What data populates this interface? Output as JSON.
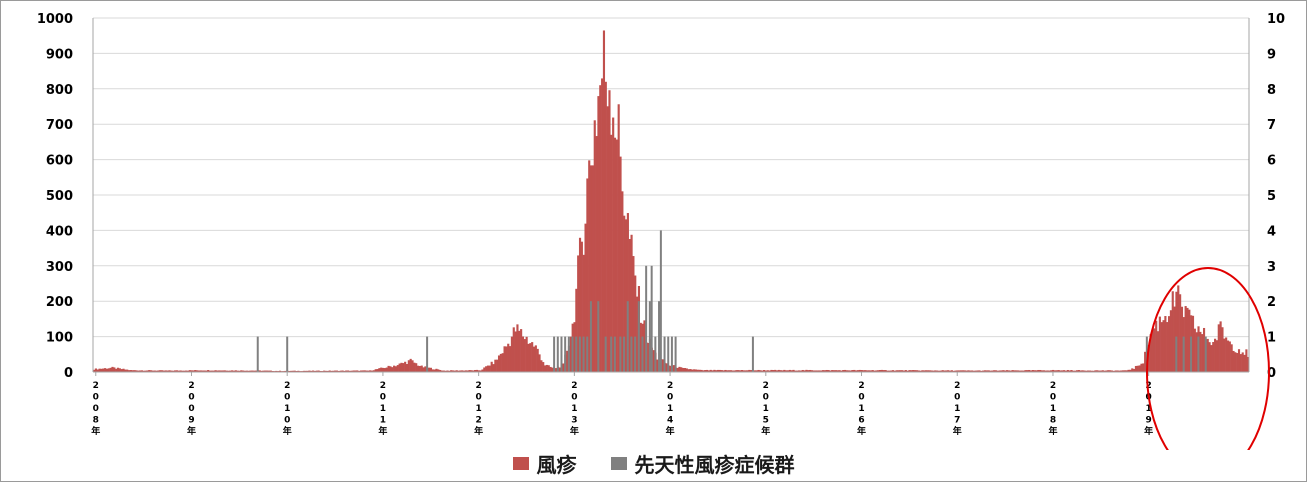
{
  "chart_data": {
    "type": "bar",
    "title": "",
    "xlabel": "",
    "ylabel": "",
    "ylim": [
      0,
      1000
    ],
    "y2lim": [
      0,
      10
    ],
    "yticks": [
      "0",
      "100",
      "200",
      "300",
      "400",
      "500",
      "600",
      "700",
      "800",
      "900",
      "1000"
    ],
    "y2ticks": [
      "0",
      "1",
      "2",
      "3",
      "4",
      "5",
      "6",
      "7",
      "8",
      "9",
      "10"
    ],
    "x_ticks": [
      "2008年",
      "2009年",
      "2010年",
      "2011年",
      "2012年",
      "2013年",
      "2014年",
      "2015年",
      "2016年",
      "2017年",
      "2018年",
      "2019年"
    ],
    "grid": true,
    "legend_position": "bottom",
    "colors": {
      "rubella": "#c0504d",
      "crs": "#808080",
      "annotation": "#e00000"
    },
    "annotation": {
      "type": "ellipse",
      "around_year": "2019年"
    },
    "series": [
      {
        "name": "風疹",
        "axis": "left",
        "x_unit": "week",
        "x_start": "2008年",
        "keypoints": [
          [
            0,
            8
          ],
          [
            10,
            12
          ],
          [
            20,
            5
          ],
          [
            40,
            4
          ],
          [
            60,
            5
          ],
          [
            90,
            4
          ],
          [
            100,
            3
          ],
          [
            150,
            4
          ],
          [
            165,
            20
          ],
          [
            172,
            32
          ],
          [
            178,
            15
          ],
          [
            190,
            4
          ],
          [
            210,
            5
          ],
          [
            218,
            30
          ],
          [
            225,
            80
          ],
          [
            229,
            120
          ],
          [
            232,
            110
          ],
          [
            240,
            70
          ],
          [
            245,
            20
          ],
          [
            250,
            10
          ],
          [
            255,
            20
          ],
          [
            260,
            130
          ],
          [
            264,
            320
          ],
          [
            268,
            520
          ],
          [
            272,
            700
          ],
          [
            276,
            850
          ],
          [
            280,
            840
          ],
          [
            284,
            700
          ],
          [
            288,
            500
          ],
          [
            292,
            330
          ],
          [
            296,
            200
          ],
          [
            300,
            100
          ],
          [
            306,
            40
          ],
          [
            312,
            20
          ],
          [
            320,
            10
          ],
          [
            330,
            5
          ],
          [
            360,
            5
          ],
          [
            420,
            5
          ],
          [
            480,
            4
          ],
          [
            520,
            5
          ],
          [
            560,
            4
          ],
          [
            565,
            10
          ],
          [
            570,
            30
          ],
          [
            575,
            120
          ],
          [
            580,
            150
          ],
          [
            584,
            175
          ],
          [
            588,
            210
          ],
          [
            592,
            175
          ],
          [
            596,
            140
          ],
          [
            600,
            120
          ],
          [
            604,
            100
          ],
          [
            608,
            80
          ],
          [
            612,
            125
          ],
          [
            616,
            90
          ],
          [
            620,
            70
          ],
          [
            624,
            60
          ],
          [
            627,
            50
          ]
        ]
      },
      {
        "name": "先天性風疹症候群",
        "axis": "right",
        "x_unit": "week",
        "x_start": "2008年",
        "points": [
          [
            89,
            1
          ],
          [
            105,
            1
          ],
          [
            181,
            1
          ],
          [
            250,
            1
          ],
          [
            252,
            1
          ],
          [
            254,
            1
          ],
          [
            256,
            1
          ],
          [
            258,
            1
          ],
          [
            260,
            1
          ],
          [
            262,
            1
          ],
          [
            264,
            1
          ],
          [
            266,
            1
          ],
          [
            268,
            1
          ],
          [
            270,
            2
          ],
          [
            274,
            2
          ],
          [
            278,
            1
          ],
          [
            281,
            1
          ],
          [
            283,
            1
          ],
          [
            286,
            1
          ],
          [
            288,
            1
          ],
          [
            290,
            2
          ],
          [
            292,
            1
          ],
          [
            294,
            1
          ],
          [
            296,
            2
          ],
          [
            298,
            1
          ],
          [
            300,
            3
          ],
          [
            302,
            2
          ],
          [
            303,
            3
          ],
          [
            305,
            1
          ],
          [
            307,
            2
          ],
          [
            308,
            4
          ],
          [
            310,
            1
          ],
          [
            312,
            1
          ],
          [
            314,
            1
          ],
          [
            316,
            1
          ],
          [
            358,
            1
          ],
          [
            572,
            1
          ],
          [
            588,
            1
          ],
          [
            592,
            1
          ],
          [
            596,
            1
          ],
          [
            600,
            1
          ],
          [
            604,
            1
          ]
        ]
      }
    ]
  }
}
